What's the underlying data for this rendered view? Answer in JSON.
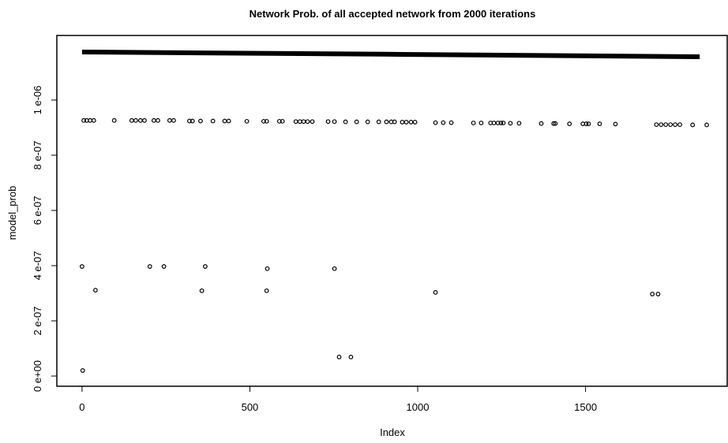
{
  "chart_data": {
    "type": "scatter",
    "title": "Network Prob. of all accepted network from 2000 iterations",
    "x_label": "Index",
    "y_label": "model_prob",
    "xlim": [
      -75,
      1922
    ],
    "ylim": [
      -3.7e-08,
      1.234e-06
    ],
    "xticks": [
      0,
      500,
      1000,
      1500
    ],
    "yticks": [
      {
        "value": 0,
        "label": "0 e+00"
      },
      {
        "value": 2e-07,
        "label": "2 e-07"
      },
      {
        "value": 4e-07,
        "label": "4 e-07"
      },
      {
        "value": 6e-07,
        "label": "6 e-07"
      },
      {
        "value": 8e-07,
        "label": "8 e-07"
      },
      {
        "value": 1e-06,
        "label": "1 e-06"
      }
    ],
    "color": "#000000",
    "dense_band": {
      "x": [
        0,
        900,
        1840
      ],
      "values": [
        1.174e-06,
        1.166e-06,
        1.157e-06
      ]
    },
    "x": [
      5,
      14,
      24,
      35,
      96,
      148,
      160,
      174,
      186,
      214,
      226,
      261,
      273,
      320,
      329,
      353,
      390,
      425,
      437,
      491,
      541,
      550,
      588,
      597,
      637,
      649,
      660,
      672,
      686,
      733,
      752,
      785,
      818,
      851,
      884,
      907,
      921,
      931,
      954,
      966,
      980,
      992,
      1053,
      1076,
      1100,
      1166,
      1189,
      1217,
      1227,
      1239,
      1248,
      1255,
      1276,
      1302,
      1368,
      1405,
      1410,
      1452,
      1492,
      1502,
      1509,
      1542,
      1589,
      1711,
      1725,
      1739,
      1753,
      1767,
      1781,
      1819,
      1861,
      0,
      202,
      244,
      367,
      552,
      752,
      40,
      357,
      550,
      1053,
      1699,
      1716,
      766,
      801,
      2
    ],
    "values": [
      9.26e-07,
      9.26e-07,
      9.26e-07,
      9.26e-07,
      9.26e-07,
      9.26e-07,
      9.26e-07,
      9.26e-07,
      9.26e-07,
      9.26e-07,
      9.26e-07,
      9.26e-07,
      9.26e-07,
      9.24e-07,
      9.24e-07,
      9.24e-07,
      9.24e-07,
      9.24e-07,
      9.24e-07,
      9.23e-07,
      9.23e-07,
      9.23e-07,
      9.23e-07,
      9.23e-07,
      9.22e-07,
      9.22e-07,
      9.22e-07,
      9.22e-07,
      9.22e-07,
      9.22e-07,
      9.22e-07,
      9.21e-07,
      9.21e-07,
      9.21e-07,
      9.21e-07,
      9.21e-07,
      9.21e-07,
      9.21e-07,
      9.2e-07,
      9.2e-07,
      9.2e-07,
      9.2e-07,
      9.18e-07,
      9.18e-07,
      9.18e-07,
      9.17e-07,
      9.17e-07,
      9.17e-07,
      9.17e-07,
      9.17e-07,
      9.17e-07,
      9.17e-07,
      9.16e-07,
      9.16e-07,
      9.15e-07,
      9.15e-07,
      9.15e-07,
      9.14e-07,
      9.14e-07,
      9.14e-07,
      9.14e-07,
      9.14e-07,
      9.13e-07,
      9.11e-07,
      9.11e-07,
      9.11e-07,
      9.11e-07,
      9.11e-07,
      9.11e-07,
      9.1e-07,
      9.1e-07,
      3.97e-07,
      3.97e-07,
      3.97e-07,
      3.97e-07,
      3.89e-07,
      3.89e-07,
      3.11e-07,
      3.09e-07,
      3.09e-07,
      3.03e-07,
      2.97e-07,
      2.97e-07,
      6.9e-08,
      6.9e-08,
      2e-08
    ]
  }
}
